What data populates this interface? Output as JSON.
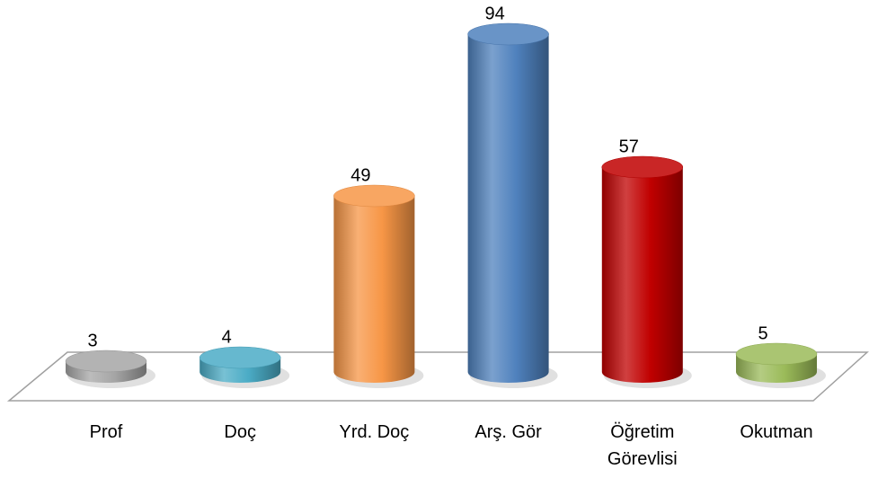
{
  "chart_data": {
    "type": "bar3d",
    "categories": [
      "Prof",
      "Doç",
      "Yrd. Doç",
      "Arş. Gör",
      "Öğretim Görevlisi",
      "Okutman"
    ],
    "values": [
      3,
      4,
      49,
      94,
      57,
      5
    ],
    "colors": [
      "#a6a6a6",
      "#4bacc6",
      "#f79646",
      "#4f81bd",
      "#c00000",
      "#9bbb59"
    ]
  }
}
